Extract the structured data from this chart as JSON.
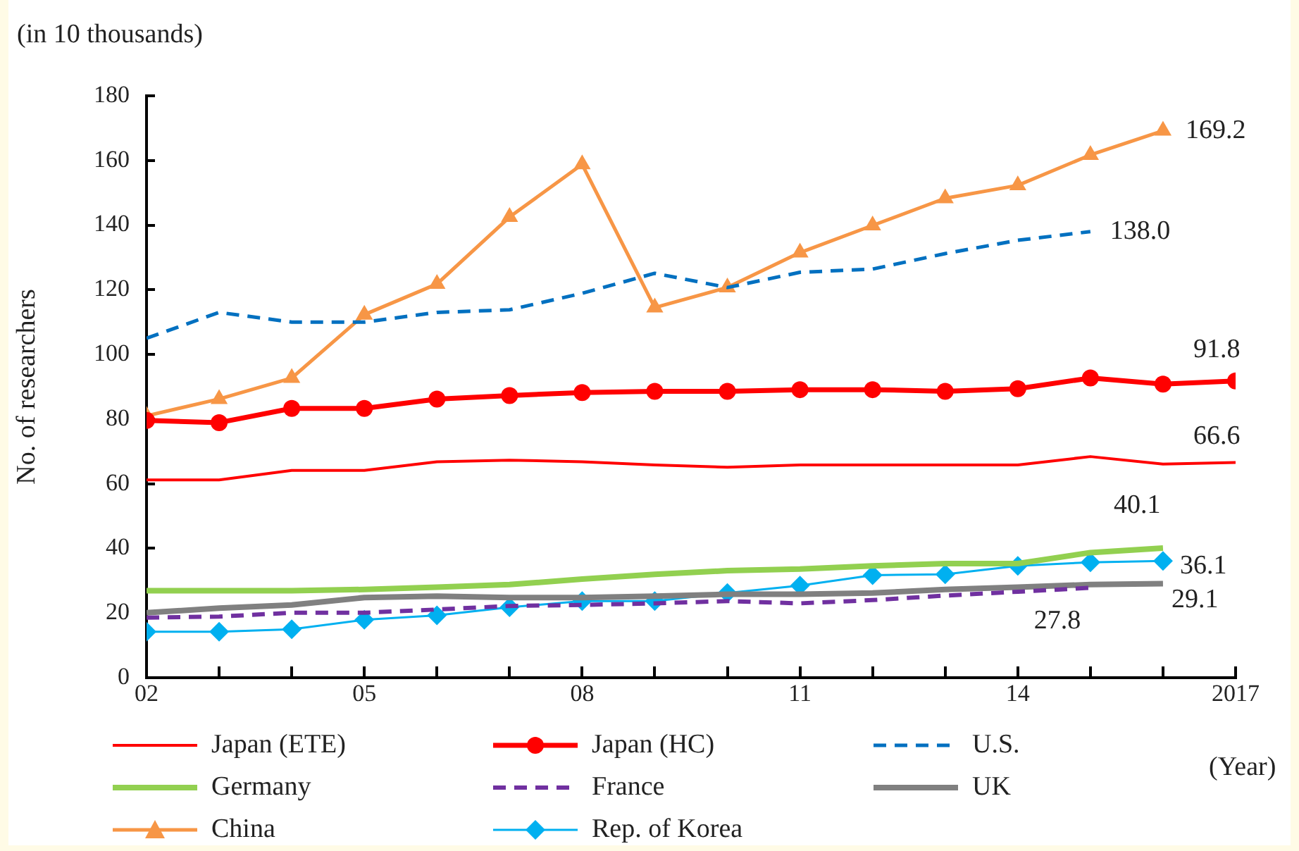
{
  "chart_data": {
    "type": "line",
    "ylabel": "No. of researchers",
    "annotations": [
      "(in 10 thousands)",
      "(Year)"
    ],
    "x": [
      2002,
      2003,
      2004,
      2005,
      2006,
      2007,
      2008,
      2009,
      2010,
      2011,
      2012,
      2013,
      2014,
      2015,
      2016,
      2017
    ],
    "xlim": [
      2002,
      2017
    ],
    "xticks": [
      {
        "value": 2002,
        "label": "02"
      },
      {
        "value": 2003,
        "label": null
      },
      {
        "value": 2004,
        "label": null
      },
      {
        "value": 2005,
        "label": "05"
      },
      {
        "value": 2006,
        "label": null
      },
      {
        "value": 2007,
        "label": null
      },
      {
        "value": 2008,
        "label": "08"
      },
      {
        "value": 2009,
        "label": null
      },
      {
        "value": 2010,
        "label": null
      },
      {
        "value": 2011,
        "label": "11"
      },
      {
        "value": 2012,
        "label": null
      },
      {
        "value": 2013,
        "label": null
      },
      {
        "value": 2014,
        "label": "14"
      },
      {
        "value": 2015,
        "label": null
      },
      {
        "value": 2016,
        "label": null
      },
      {
        "value": 2017,
        "label": "2017"
      }
    ],
    "ylim": [
      0,
      180
    ],
    "yticks": [
      0,
      20,
      40,
      60,
      80,
      100,
      120,
      140,
      160,
      180
    ],
    "grid": false,
    "legend": "bottom",
    "series": [
      {
        "name": "Japan (ETE)",
        "color": "#ff0000",
        "marker": "none",
        "line_style": "solid",
        "values": [
          61.2,
          61.2,
          64.1,
          64.1,
          66.8,
          67.3,
          66.8,
          65.8,
          65.1,
          65.8,
          65.8,
          65.8,
          65.8,
          68.4,
          66.1,
          66.6
        ],
        "value_labels": [
          null,
          null,
          null,
          null,
          null,
          null,
          null,
          null,
          null,
          null,
          null,
          null,
          null,
          null,
          null,
          "66.6"
        ]
      },
      {
        "name": "Japan (HC)",
        "color": "#ff0000",
        "marker": "circle",
        "line_style": "solid",
        "values": [
          79.6,
          78.9,
          83.3,
          83.3,
          86.2,
          87.3,
          88.2,
          88.6,
          88.6,
          89.1,
          89.1,
          88.6,
          89.4,
          92.7,
          90.8,
          91.8
        ],
        "value_labels": [
          null,
          null,
          null,
          null,
          null,
          null,
          null,
          null,
          null,
          null,
          null,
          null,
          null,
          null,
          null,
          "91.8"
        ]
      },
      {
        "name": "U.S.",
        "color": "#0070c0",
        "marker": "none",
        "line_style": "dashed",
        "values": [
          105,
          113,
          110,
          110,
          113,
          113.8,
          118.9,
          125.1,
          120.7,
          125.4,
          126.4,
          131.2,
          135.3,
          138.0,
          null,
          null
        ],
        "value_labels": [
          null,
          null,
          null,
          null,
          null,
          null,
          null,
          null,
          null,
          null,
          null,
          null,
          null,
          "138.0",
          null,
          null
        ]
      },
      {
        "name": "Germany",
        "color": "#92d050",
        "marker": "none",
        "line_style": "solid",
        "values": [
          26.9,
          26.9,
          26.9,
          27.3,
          28.0,
          28.8,
          30.5,
          32.0,
          33.1,
          33.6,
          34.6,
          35.3,
          35.3,
          38.7,
          40.1,
          null
        ],
        "value_labels": [
          null,
          null,
          null,
          null,
          null,
          null,
          null,
          null,
          null,
          null,
          null,
          null,
          null,
          null,
          "40.1",
          null
        ]
      },
      {
        "name": "France",
        "color": "#7030a0",
        "marker": "none",
        "line_style": "dashed",
        "values": [
          18.6,
          18.9,
          20.1,
          20.1,
          21.1,
          22.2,
          22.5,
          23.0,
          23.7,
          23.0,
          24.0,
          25.4,
          26.6,
          27.8,
          null,
          null
        ],
        "value_labels": [
          null,
          null,
          null,
          null,
          null,
          null,
          null,
          null,
          null,
          null,
          null,
          null,
          null,
          "27.8",
          null,
          null
        ]
      },
      {
        "name": "UK",
        "color": "#808080",
        "marker": "none",
        "line_style": "solid",
        "values": [
          20.1,
          21.5,
          22.5,
          24.8,
          25.2,
          24.8,
          24.8,
          25.2,
          25.8,
          25.8,
          26.2,
          27.3,
          28.0,
          28.8,
          29.1,
          null
        ],
        "value_labels": [
          null,
          null,
          null,
          null,
          null,
          null,
          null,
          null,
          null,
          null,
          null,
          null,
          null,
          null,
          "29.1",
          null
        ]
      },
      {
        "name": "China",
        "color": "#f79646",
        "marker": "triangle",
        "line_style": "solid",
        "values": [
          81.0,
          86.2,
          92.7,
          112.3,
          121.8,
          142.5,
          158.8,
          114.5,
          120.7,
          131.5,
          139.9,
          148.3,
          152.3,
          161.7,
          169.2,
          null
        ],
        "value_labels": [
          null,
          null,
          null,
          null,
          null,
          null,
          null,
          null,
          null,
          null,
          null,
          null,
          null,
          null,
          "169.2",
          null
        ]
      },
      {
        "name": "Rep. of Korea",
        "color": "#00b0f0",
        "marker": "diamond",
        "line_style": "solid",
        "values": [
          14.2,
          14.2,
          15.0,
          17.9,
          19.3,
          21.8,
          23.7,
          23.7,
          26.2,
          28.5,
          31.7,
          32.0,
          34.6,
          35.7,
          36.1,
          null
        ],
        "value_labels": [
          null,
          null,
          null,
          null,
          null,
          null,
          null,
          null,
          null,
          null,
          null,
          null,
          null,
          null,
          "36.1",
          null
        ]
      }
    ]
  }
}
